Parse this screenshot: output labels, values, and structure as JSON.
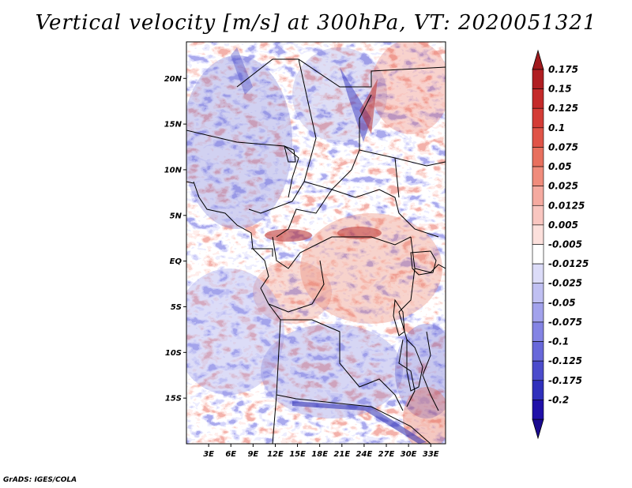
{
  "title": "Vertical velocity [m/s] at 300hPa, VT: 2020051321",
  "credit": "GrADS: IGES/COLA",
  "map": {
    "lon_range": [
      0,
      35
    ],
    "lat_range": [
      -20,
      24
    ],
    "lat_ticks": [
      {
        "value": 20,
        "label": "20N"
      },
      {
        "value": 15,
        "label": "15N"
      },
      {
        "value": 10,
        "label": "10N"
      },
      {
        "value": 5,
        "label": "5N"
      },
      {
        "value": 0,
        "label": "EQ"
      },
      {
        "value": -5,
        "label": "5S"
      },
      {
        "value": -10,
        "label": "10S"
      },
      {
        "value": -15,
        "label": "15S"
      }
    ],
    "lon_ticks": [
      {
        "value": 3,
        "label": "3E"
      },
      {
        "value": 6,
        "label": "6E"
      },
      {
        "value": 9,
        "label": "9E"
      },
      {
        "value": 12,
        "label": "12E"
      },
      {
        "value": 15,
        "label": "15E"
      },
      {
        "value": 18,
        "label": "18E"
      },
      {
        "value": 21,
        "label": "21E"
      },
      {
        "value": 24,
        "label": "24E"
      },
      {
        "value": 27,
        "label": "27E"
      },
      {
        "value": 30,
        "label": "30E"
      },
      {
        "value": 33,
        "label": "33E"
      }
    ]
  },
  "colorbar": {
    "levels": [
      {
        "label": "0.175",
        "color": "#b01e22"
      },
      {
        "label": "0.15",
        "color": "#c42a2a"
      },
      {
        "label": "0.125",
        "color": "#d43c36"
      },
      {
        "label": "0.1",
        "color": "#e05448"
      },
      {
        "label": "0.075",
        "color": "#e8705e"
      },
      {
        "label": "0.05",
        "color": "#f08c7c"
      },
      {
        "label": "0.025",
        "color": "#f5aaa0"
      },
      {
        "label": "0.0125",
        "color": "#f9c6c0"
      },
      {
        "label": "0.005",
        "color": "#fce0dc"
      },
      {
        "label": "-0.005",
        "color": "#ffffff"
      },
      {
        "label": "-0.0125",
        "color": "#dcdcf8"
      },
      {
        "label": "-0.025",
        "color": "#c0c0f2"
      },
      {
        "label": "-0.05",
        "color": "#a2a2ec"
      },
      {
        "label": "-0.075",
        "color": "#8484e4"
      },
      {
        "label": "-0.1",
        "color": "#6868da"
      },
      {
        "label": "-0.125",
        "color": "#4c4ccc"
      },
      {
        "label": "-0.175",
        "color": "#3030bc"
      },
      {
        "label": "-0.2",
        "color": "#2010a8"
      }
    ],
    "top_arrow_color": "#a01a1e",
    "bottom_arrow_color": "#1a0a90"
  },
  "field_colors": {
    "strong_up": "#3838c0",
    "up": "#8888e0",
    "weak_up": "#b8b8f0",
    "neutral": "#ffffff",
    "weak_down": "#f4b8b0",
    "down": "#e67666",
    "strong_down": "#b82826"
  }
}
